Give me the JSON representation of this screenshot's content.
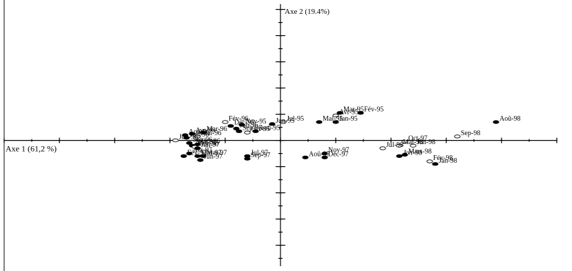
{
  "chart_data": {
    "type": "scatter",
    "title": "",
    "xlabel": "Axe 1 (61,2 %)",
    "ylabel": "Axe 2 (19.4%)",
    "xlim": [
      -1.0,
      1.0
    ],
    "ylim": [
      -0.96,
      1.04
    ],
    "grid": false,
    "points": [
      {
        "label": "Aoû-98",
        "x": 0.78,
        "y": 0.14,
        "marker": "filled"
      },
      {
        "label": "Sep-98",
        "x": 0.64,
        "y": 0.03,
        "marker": "open"
      },
      {
        "label": "Mar-95",
        "x": 0.215,
        "y": 0.21,
        "marker": "filled"
      },
      {
        "label": "Fév-95",
        "x": 0.29,
        "y": 0.21,
        "marker": "filled"
      },
      {
        "label": "Avr-95",
        "x": 0.2,
        "y": 0.19,
        "marker": "open"
      },
      {
        "label": "Jan-95",
        "x": 0.2,
        "y": 0.14,
        "marker": "filled"
      },
      {
        "label": "Mai-95",
        "x": 0.14,
        "y": 0.14,
        "marker": "filled"
      },
      {
        "label": "Jun-95",
        "x": -0.03,
        "y": 0.125,
        "marker": "filled"
      },
      {
        "label": "Jul-95",
        "x": 0.01,
        "y": 0.14,
        "marker": "open"
      },
      {
        "label": "Aoû-95",
        "x": -0.09,
        "y": 0.07,
        "marker": "filled"
      },
      {
        "label": "Fév-96",
        "x": -0.2,
        "y": 0.14,
        "marker": "open"
      },
      {
        "label": "Nov-95",
        "x": -0.14,
        "y": 0.12,
        "marker": "filled"
      },
      {
        "label": "Déc-95",
        "x": -0.18,
        "y": 0.11,
        "marker": "filled"
      },
      {
        "label": "Jan-96",
        "x": -0.16,
        "y": 0.09,
        "marker": "filled"
      },
      {
        "label": "Sep-95",
        "x": -0.15,
        "y": 0.07,
        "marker": "filled"
      },
      {
        "label": "Oct-95",
        "x": -0.12,
        "y": 0.06,
        "marker": "open"
      },
      {
        "label": "Mar-96",
        "x": -0.28,
        "y": 0.06,
        "marker": "filled"
      },
      {
        "label": "Avr-96",
        "x": -0.32,
        "y": 0.05,
        "marker": "filled"
      },
      {
        "label": "Mai-96",
        "x": -0.3,
        "y": 0.03,
        "marker": "open"
      },
      {
        "label": "Juil-96",
        "x": -0.34,
        "y": 0.02,
        "marker": "filled"
      },
      {
        "label": "Aoû-96",
        "x": -0.345,
        "y": 0.04,
        "marker": "filled"
      },
      {
        "label": "Jun-96",
        "x": -0.38,
        "y": 0.0,
        "marker": "open"
      },
      {
        "label": "Sep-96",
        "x": -0.33,
        "y": -0.02,
        "marker": "filled"
      },
      {
        "label": "Oct-96",
        "x": -0.3,
        "y": -0.03,
        "marker": "filled"
      },
      {
        "label": "Nov-96",
        "x": -0.32,
        "y": -0.04,
        "marker": "filled"
      },
      {
        "label": "Déc-96",
        "x": -0.31,
        "y": -0.05,
        "marker": "open"
      },
      {
        "label": "Jan-97",
        "x": -0.3,
        "y": -0.06,
        "marker": "filled"
      },
      {
        "label": "Avr-97",
        "x": -0.33,
        "y": -0.1,
        "marker": "filled"
      },
      {
        "label": "Fév-97",
        "x": -0.35,
        "y": -0.12,
        "marker": "filled"
      },
      {
        "label": "Mar-97",
        "x": -0.3,
        "y": -0.12,
        "marker": "filled"
      },
      {
        "label": "Mai-97",
        "x": -0.28,
        "y": -0.12,
        "marker": "filled"
      },
      {
        "label": "Jun-97",
        "x": -0.29,
        "y": -0.15,
        "marker": "filled"
      },
      {
        "label": "Jul-97",
        "x": -0.12,
        "y": -0.12,
        "marker": "filled"
      },
      {
        "label": "Sep-97",
        "x": -0.12,
        "y": -0.14,
        "marker": "filled"
      },
      {
        "label": "Aoû-97",
        "x": 0.09,
        "y": -0.13,
        "marker": "filled"
      },
      {
        "label": "Nov-97",
        "x": 0.16,
        "y": -0.1,
        "marker": "filled"
      },
      {
        "label": "Déc-97",
        "x": 0.16,
        "y": -0.13,
        "marker": "filled"
      },
      {
        "label": "Oct-97",
        "x": 0.45,
        "y": -0.01,
        "marker": "open"
      },
      {
        "label": "Jul-98",
        "x": 0.37,
        "y": -0.06,
        "marker": "open"
      },
      {
        "label": "Mai-98",
        "x": 0.43,
        "y": -0.04,
        "marker": "open"
      },
      {
        "label": "Jun-98",
        "x": 0.48,
        "y": -0.04,
        "marker": "open"
      },
      {
        "label": "Avr-98",
        "x": 0.43,
        "y": -0.12,
        "marker": "filled"
      },
      {
        "label": "Mars-98",
        "x": 0.45,
        "y": -0.11,
        "marker": "filled"
      },
      {
        "label": "Fév-98",
        "x": 0.54,
        "y": -0.16,
        "marker": "open"
      },
      {
        "label": "Jan-98",
        "x": 0.56,
        "y": -0.18,
        "marker": "filled"
      }
    ]
  }
}
